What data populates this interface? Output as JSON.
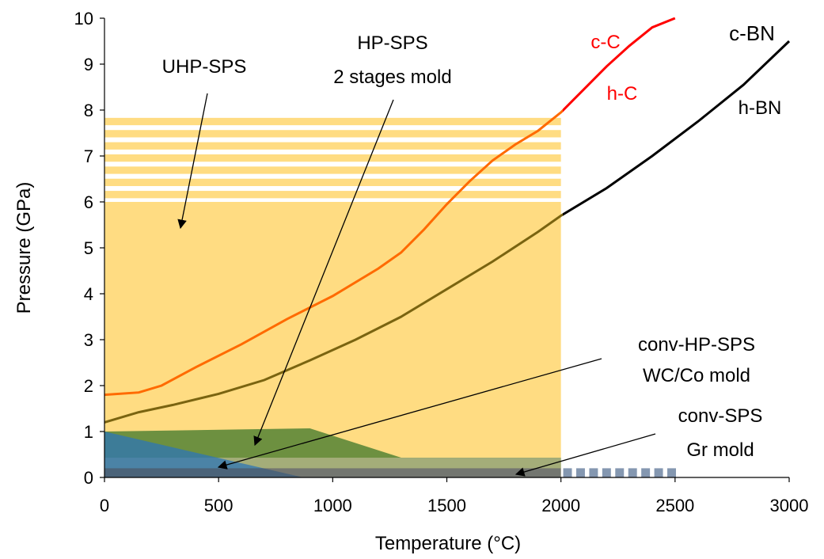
{
  "chart_data": {
    "type": "line",
    "xlabel": "Temperature (°C)",
    "ylabel": "Pressure (GPa)",
    "xlim": [
      0,
      3000
    ],
    "ylim": [
      0,
      10
    ],
    "xticks": [
      "0",
      "500",
      "1000",
      "1500",
      "2000",
      "2500",
      "3000"
    ],
    "yticks": [
      "0",
      "1",
      "2",
      "3",
      "4",
      "5",
      "6",
      "7",
      "8",
      "9",
      "10"
    ],
    "grid": false,
    "series": [
      {
        "name": "c-C / h-C",
        "color": "#ff0000",
        "x": [
          0,
          150,
          250,
          400,
          600,
          800,
          1000,
          1200,
          1300,
          1400,
          1500,
          1600,
          1700,
          1800,
          1900,
          2000,
          2100,
          2200,
          2300,
          2400,
          2500
        ],
        "y": [
          1.8,
          1.85,
          2.0,
          2.4,
          2.9,
          3.45,
          3.95,
          4.55,
          4.9,
          5.4,
          5.95,
          6.45,
          6.9,
          7.25,
          7.55,
          7.95,
          8.45,
          8.95,
          9.4,
          9.8,
          10.0
        ]
      },
      {
        "name": "c-BN / h-BN",
        "color": "#000000",
        "x": [
          0,
          150,
          300,
          500,
          700,
          900,
          1100,
          1300,
          1500,
          1700,
          1900,
          2000,
          2200,
          2400,
          2600,
          2800,
          3000
        ],
        "y": [
          1.2,
          1.42,
          1.58,
          1.82,
          2.12,
          2.55,
          3.0,
          3.5,
          4.1,
          4.7,
          5.35,
          5.7,
          6.3,
          7.0,
          7.75,
          8.55,
          9.5
        ]
      }
    ],
    "regions": [
      {
        "name": "UHP-SPS",
        "color": "#ffdc82",
        "x": [
          0,
          2000
        ],
        "y": [
          0,
          6.0
        ],
        "striped_to": 7.9
      },
      {
        "name": "HP-SPS 2 stages mold",
        "color": "#548235",
        "points": [
          [
            0,
            1.0
          ],
          [
            900,
            1.07
          ],
          [
            1300,
            0.43
          ],
          [
            2000,
            0.43
          ],
          [
            2000,
            0.2
          ],
          [
            0,
            0.2
          ]
        ]
      },
      {
        "name": "conv-HP-SPS WC/Co mold",
        "color": "#2e75b6",
        "points": [
          [
            0,
            1.0
          ],
          [
            870,
            0
          ],
          [
            0,
            0
          ]
        ]
      },
      {
        "name": "conv-SPS Gr mold",
        "color": "#44546a",
        "x": [
          0,
          2000
        ],
        "y": [
          0,
          0.2
        ],
        "dashed_to": 2500
      }
    ],
    "annotations": {
      "uhp": "UHP-SPS",
      "hp_line1": "HP-SPS",
      "hp_line2": "2 stages mold",
      "convhp_line1": "conv-HP-SPS",
      "convhp_line2": "WC/Co mold",
      "conv_line1": "conv-SPS",
      "conv_line2": "Gr mold",
      "cC": "c-C",
      "hC": "h-C",
      "cBN": "c-BN",
      "hBN": "h-BN"
    }
  }
}
